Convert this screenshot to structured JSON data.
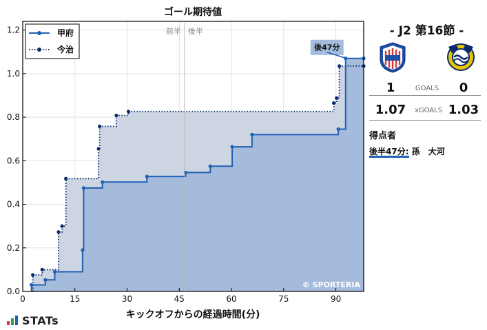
{
  "chart_data": {
    "type": "line",
    "title": "ゴール期待値",
    "xlabel": "キックオフからの経過時間(分)",
    "ylabel": "",
    "xlim": [
      0,
      98
    ],
    "ylim": [
      0,
      1.24
    ],
    "xticks": [
      0,
      15,
      30,
      45,
      60,
      75,
      90
    ],
    "yticks": [
      0.0,
      0.2,
      0.4,
      0.6,
      0.8,
      1.0,
      1.2
    ],
    "grid": true,
    "legend_position": "top-left",
    "halftime_minute": 46.5,
    "halftime_labels": [
      "前半",
      "後半"
    ],
    "series": [
      {
        "name": "甲府",
        "color": "#1f5fb4",
        "fill": "#a4bbdb",
        "linestyle": "solid",
        "points": [
          [
            2.5,
            0.03
          ],
          [
            6.5,
            0.053
          ],
          [
            9.2,
            0.09
          ],
          [
            17.2,
            0.19
          ],
          [
            17.5,
            0.475
          ],
          [
            22.9,
            0.502
          ],
          [
            35.7,
            0.528
          ],
          [
            46.8,
            0.546
          ],
          [
            53.9,
            0.575
          ],
          [
            60.2,
            0.664
          ],
          [
            65.9,
            0.72
          ],
          [
            90.7,
            0.745
          ],
          [
            92.8,
            1.07
          ],
          [
            98,
            1.07
          ]
        ]
      },
      {
        "name": "今治",
        "color": "#0a2a6e",
        "fill": "#cdd5e2",
        "linestyle": "dotted",
        "points": [
          [
            2.9,
            0.076
          ],
          [
            5.6,
            0.1
          ],
          [
            10.3,
            0.273
          ],
          [
            11.3,
            0.3
          ],
          [
            12.4,
            0.518
          ],
          [
            21.8,
            0.655
          ],
          [
            22.1,
            0.758
          ],
          [
            26.9,
            0.808
          ],
          [
            30.4,
            0.826
          ],
          [
            89.4,
            0.865
          ],
          [
            90.2,
            0.888
          ],
          [
            91.0,
            1.035
          ],
          [
            98,
            1.035
          ]
        ]
      }
    ],
    "annotation": {
      "text": "後47分",
      "x": 92.8,
      "y": 1.07
    },
    "watermark": "© SPORTERIA"
  },
  "panel": {
    "round": "- J2 第16節 -",
    "home_score": "1",
    "away_score": "0",
    "goals_label": "GOALS",
    "home_xg": "1.07",
    "away_xg": "1.03",
    "xg_label": "xGOALS",
    "scorers_title": "得点者",
    "scorer": "後半47分: 孫　大河"
  },
  "brand": "STATs"
}
